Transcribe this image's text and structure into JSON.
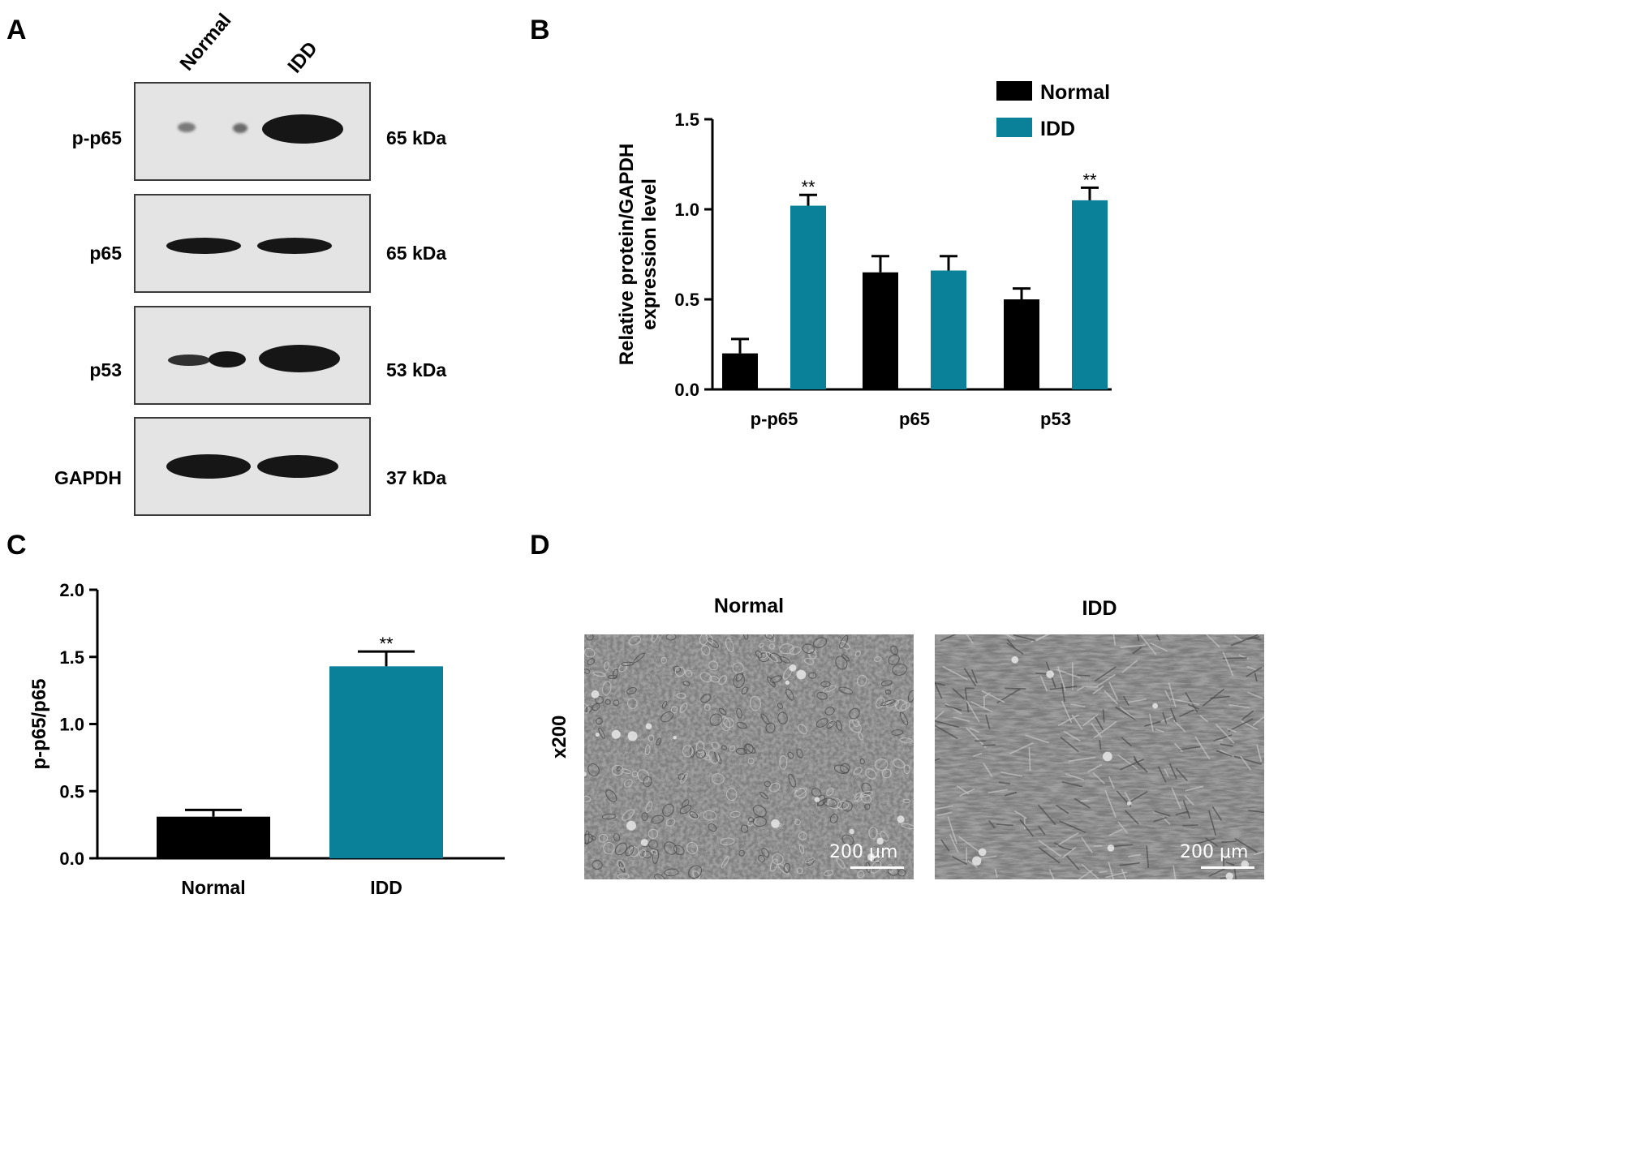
{
  "panels": {
    "A": "A",
    "B": "B",
    "C": "C",
    "D": "D"
  },
  "blot": {
    "lanes": [
      "Normal",
      "IDD"
    ],
    "rows": [
      {
        "label": "p-p65",
        "kda": "65 kDa"
      },
      {
        "label": "p65",
        "kda": "65 kDa"
      },
      {
        "label": "p53",
        "kda": "53 kDa"
      },
      {
        "label": "GAPDH",
        "kda": "37 kDa"
      }
    ]
  },
  "chart_data": [
    {
      "type": "bar",
      "panel": "B",
      "categories": [
        "p-p65",
        "p65",
        "p53"
      ],
      "series": [
        {
          "name": "Normal",
          "color": "#000000",
          "values": [
            0.2,
            0.65,
            0.5
          ],
          "errors": [
            0.08,
            0.09,
            0.06
          ]
        },
        {
          "name": "IDD",
          "color": "#0a8099",
          "values": [
            1.02,
            0.66,
            1.05
          ],
          "errors": [
            0.06,
            0.08,
            0.07
          ]
        }
      ],
      "significance": [
        "**",
        "",
        "**"
      ],
      "ylabel": [
        "Relative protein/GAPDH",
        "expression level"
      ],
      "ylim": [
        0,
        1.5
      ],
      "yticks": [
        "0.0",
        "0.5",
        "1.0",
        "1.5"
      ],
      "legend": "top-right"
    },
    {
      "type": "bar",
      "panel": "C",
      "categories": [
        "Normal",
        "IDD"
      ],
      "values": [
        0.31,
        1.43
      ],
      "errors": [
        0.05,
        0.11
      ],
      "colors": [
        "#000000",
        "#0a8099"
      ],
      "significance": [
        "",
        "**"
      ],
      "ylabel": "p-p65/p65",
      "ylim": [
        0,
        2.0
      ],
      "yticks": [
        "0.0",
        "0.5",
        "1.0",
        "1.5",
        "2.0"
      ]
    }
  ],
  "micrographs": {
    "normal_label": "Normal",
    "idd_label": "IDD",
    "magnification": "x200",
    "scale_bar": "200 μm"
  }
}
